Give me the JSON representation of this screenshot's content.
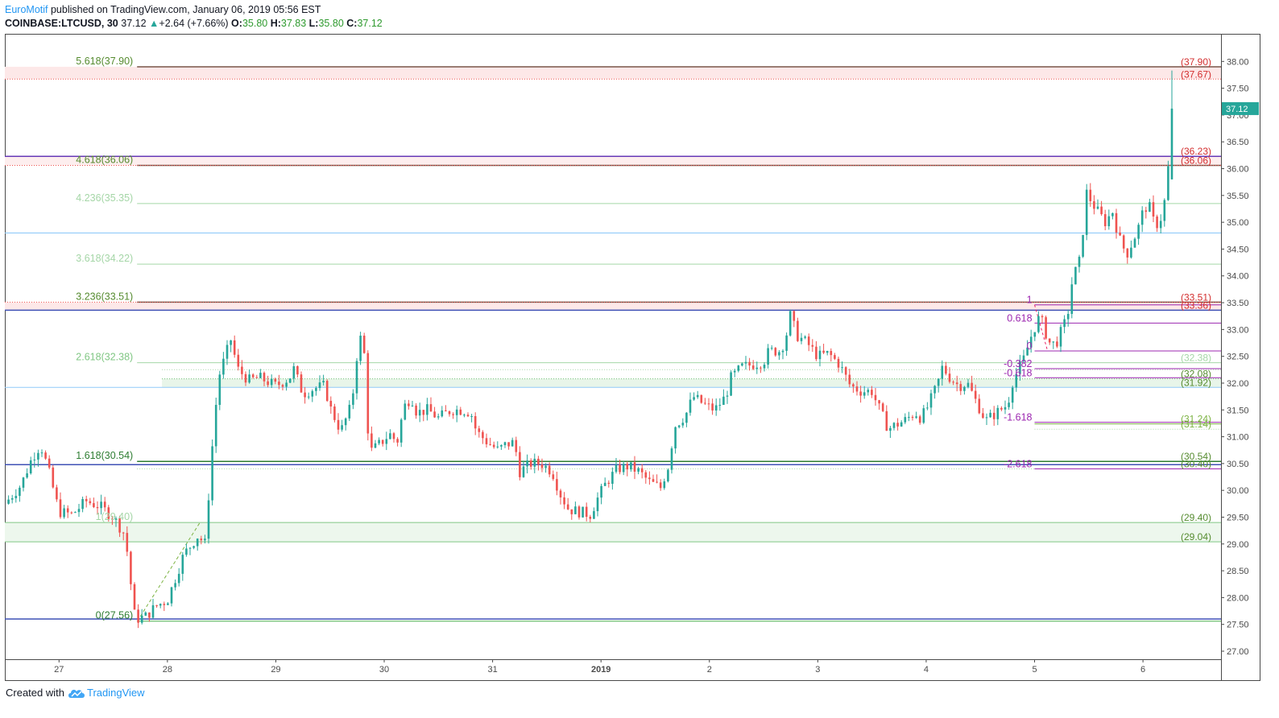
{
  "header": {
    "author": "EuroMotif",
    "published": " published on TradingView.com, January 06, 2019 05:56 EST",
    "symbol": "COINBASE:LTCUSD, 30",
    "last": "37.12",
    "change": "+2.64 (+7.66%)",
    "o_label": "O:",
    "o": "35.80",
    "h_label": "H:",
    "h": "37.83",
    "l_label": "L:",
    "l": "35.80",
    "c_label": "C:",
    "c": "37.12"
  },
  "footer": {
    "created_with": "Created with",
    "brand": "TradingView"
  },
  "colors": {
    "up": "#26a69a",
    "down": "#ef5350",
    "fib": "#4caf50",
    "violet": "#9c27b0",
    "red_label": "#d32f2f"
  },
  "chart_data": {
    "type": "candlestick",
    "title": "",
    "ylim": [
      26.85,
      38.5
    ],
    "y_ticks": [
      "27.00",
      "27.50",
      "28.00",
      "28.50",
      "29.00",
      "29.50",
      "30.00",
      "30.50",
      "31.00",
      "31.50",
      "32.00",
      "32.50",
      "33.00",
      "33.50",
      "34.00",
      "34.50",
      "35.00",
      "35.50",
      "36.00",
      "36.50",
      "37.00",
      "37.50",
      "38.00"
    ],
    "last_price": "37.12",
    "x_ticks": [
      {
        "label": "27",
        "x": 0
      },
      {
        "label": "28",
        "x": 1
      },
      {
        "label": "29",
        "x": 2
      },
      {
        "label": "30",
        "x": 3
      },
      {
        "label": "31",
        "x": 4
      },
      {
        "label": "2019",
        "x": 5,
        "bold": true
      },
      {
        "label": "2",
        "x": 6
      },
      {
        "label": "3",
        "x": 7
      },
      {
        "label": "4",
        "x": 8
      },
      {
        "label": "5",
        "x": 9
      },
      {
        "label": "6",
        "x": 10
      }
    ],
    "xlim": [
      -0.5,
      10.72
    ],
    "close_path": [
      [
        -0.5,
        29.75
      ],
      [
        -0.35,
        30.1
      ],
      [
        -0.25,
        30.6
      ],
      [
        -0.17,
        30.85
      ],
      [
        -0.1,
        30.4
      ],
      [
        0.0,
        29.6
      ],
      [
        0.12,
        29.55
      ],
      [
        0.25,
        29.8
      ],
      [
        0.38,
        29.7
      ],
      [
        0.5,
        29.5
      ],
      [
        0.6,
        29.2
      ],
      [
        0.65,
        28.6
      ],
      [
        0.68,
        27.75
      ],
      [
        0.72,
        27.6
      ],
      [
        0.8,
        27.65
      ],
      [
        0.9,
        27.85
      ],
      [
        1.0,
        27.95
      ],
      [
        1.08,
        28.4
      ],
      [
        1.15,
        28.8
      ],
      [
        1.28,
        29.15
      ],
      [
        1.35,
        29.0
      ],
      [
        1.4,
        30.5
      ],
      [
        1.47,
        32.1
      ],
      [
        1.55,
        32.6
      ],
      [
        1.6,
        32.9
      ],
      [
        1.63,
        32.3
      ],
      [
        1.75,
        32.05
      ],
      [
        1.85,
        32.1
      ],
      [
        2.0,
        31.95
      ],
      [
        2.13,
        32.1
      ],
      [
        2.15,
        32.35
      ],
      [
        2.25,
        31.8
      ],
      [
        2.35,
        31.9
      ],
      [
        2.45,
        31.95
      ],
      [
        2.5,
        31.55
      ],
      [
        2.6,
        31.1
      ],
      [
        2.7,
        31.6
      ],
      [
        2.75,
        32.55
      ],
      [
        2.8,
        33.0
      ],
      [
        2.82,
        32.4
      ],
      [
        2.86,
        30.7
      ],
      [
        2.95,
        30.85
      ],
      [
        3.05,
        31.05
      ],
      [
        3.12,
        30.9
      ],
      [
        3.18,
        31.55
      ],
      [
        3.25,
        31.75
      ],
      [
        3.3,
        31.45
      ],
      [
        3.4,
        31.5
      ],
      [
        3.5,
        31.35
      ],
      [
        3.62,
        31.5
      ],
      [
        3.72,
        31.5
      ],
      [
        3.8,
        31.45
      ],
      [
        3.85,
        31.1
      ],
      [
        3.95,
        30.9
      ],
      [
        4.05,
        30.75
      ],
      [
        4.12,
        30.85
      ],
      [
        4.2,
        30.9
      ],
      [
        4.25,
        30.35
      ],
      [
        4.35,
        30.5
      ],
      [
        4.45,
        30.5
      ],
      [
        4.55,
        30.35
      ],
      [
        4.62,
        29.95
      ],
      [
        4.7,
        29.65
      ],
      [
        4.8,
        29.6
      ],
      [
        4.9,
        29.55
      ],
      [
        4.98,
        29.9
      ],
      [
        5.05,
        30.15
      ],
      [
        5.15,
        30.4
      ],
      [
        5.25,
        30.45
      ],
      [
        5.35,
        30.35
      ],
      [
        5.45,
        30.15
      ],
      [
        5.55,
        30.05
      ],
      [
        5.62,
        30.45
      ],
      [
        5.68,
        31.2
      ],
      [
        5.78,
        31.4
      ],
      [
        5.85,
        31.75
      ],
      [
        5.95,
        31.6
      ],
      [
        6.05,
        31.5
      ],
      [
        6.15,
        31.75
      ],
      [
        6.2,
        32.1
      ],
      [
        6.3,
        32.3
      ],
      [
        6.4,
        32.35
      ],
      [
        6.5,
        32.4
      ],
      [
        6.55,
        32.6
      ],
      [
        6.65,
        32.6
      ],
      [
        6.7,
        32.8
      ],
      [
        6.75,
        33.3
      ],
      [
        6.8,
        32.9
      ],
      [
        6.9,
        32.75
      ],
      [
        7.0,
        32.5
      ],
      [
        7.1,
        32.55
      ],
      [
        7.2,
        32.35
      ],
      [
        7.3,
        31.95
      ],
      [
        7.4,
        31.85
      ],
      [
        7.5,
        31.85
      ],
      [
        7.55,
        31.6
      ],
      [
        7.65,
        31.15
      ],
      [
        7.7,
        31.2
      ],
      [
        7.8,
        31.3
      ],
      [
        7.9,
        31.45
      ],
      [
        7.95,
        31.35
      ],
      [
        8.0,
        31.5
      ],
      [
        8.1,
        31.95
      ],
      [
        8.15,
        32.3
      ],
      [
        8.22,
        32.1
      ],
      [
        8.3,
        31.95
      ],
      [
        8.38,
        32.0
      ],
      [
        8.45,
        31.7
      ],
      [
        8.55,
        31.3
      ],
      [
        8.65,
        31.45
      ],
      [
        8.75,
        31.6
      ],
      [
        8.8,
        32.05
      ],
      [
        8.9,
        32.45
      ],
      [
        8.98,
        32.95
      ],
      [
        9.05,
        33.25
      ],
      [
        9.1,
        32.95
      ],
      [
        9.15,
        32.7
      ],
      [
        9.22,
        32.8
      ],
      [
        9.25,
        33.0
      ],
      [
        9.3,
        33.2
      ],
      [
        9.35,
        33.95
      ],
      [
        9.42,
        34.3
      ],
      [
        9.48,
        35.55
      ],
      [
        9.55,
        35.3
      ],
      [
        9.65,
        35.0
      ],
      [
        9.72,
        35.2
      ],
      [
        9.78,
        34.7
      ],
      [
        9.85,
        34.4
      ],
      [
        9.95,
        34.85
      ],
      [
        10.0,
        35.2
      ],
      [
        10.05,
        35.35
      ],
      [
        10.1,
        35.0
      ],
      [
        10.15,
        34.95
      ],
      [
        10.2,
        35.4
      ],
      [
        10.22,
        35.8
      ],
      [
        10.25,
        36.3
      ],
      [
        10.27,
        37.12
      ]
    ],
    "lines": [
      {
        "y": 37.9,
        "color": "#795548",
        "width": 1.5,
        "from": 0.72,
        "right_label": "(37.90)",
        "label_color": "#d32f2f"
      },
      {
        "y": 37.67,
        "color": "#ef5350",
        "width": 1,
        "dotted": true,
        "from": -0.5,
        "right_label": "(37.67)",
        "label_color": "#d32f2f"
      },
      {
        "y": 36.23,
        "color": "#673ab7",
        "width": 1.5,
        "from": -0.5,
        "right_label": "(36.23)",
        "label_color": "#d32f2f"
      },
      {
        "y": 36.06,
        "color": "#795548",
        "width": 1.5,
        "from": 0.72,
        "right_label": "(36.06)",
        "label_color": "#d32f2f"
      },
      {
        "y": 36.06,
        "color": "#ef5350",
        "width": 1,
        "dotted": true,
        "from": -0.5
      },
      {
        "y": 35.35,
        "color": "#a5d6a7",
        "width": 1,
        "from": 0.72
      },
      {
        "y": 34.8,
        "color": "#90caf9",
        "width": 1.2,
        "from": -0.5
      },
      {
        "y": 34.22,
        "color": "#a5d6a7",
        "width": 1,
        "from": 0.72
      },
      {
        "y": 33.51,
        "color": "#795548",
        "width": 1.5,
        "from": 0.72,
        "right_label": "(33.51)",
        "label_color": "#d32f2f"
      },
      {
        "y": 33.51,
        "color": "#ef5350",
        "width": 1,
        "dotted": true,
        "from": -0.5
      },
      {
        "y": 33.36,
        "color": "#3f51b5",
        "width": 1.5,
        "from": -0.5,
        "right_label": "(33.36)",
        "label_color": "#d32f2f"
      },
      {
        "y": 32.38,
        "color": "#a5d6a7",
        "width": 1,
        "from": 0.72,
        "right_label": "(32.38)",
        "label_color": "#a5d6a7"
      },
      {
        "y": 32.25,
        "color": "#a5d6a7",
        "width": 1,
        "dotted": true,
        "from": 0.95
      },
      {
        "y": 32.08,
        "color": "#66bb6a",
        "width": 1,
        "dotted": true,
        "from": 0.95,
        "right_label": "(32.08)",
        "label_color": "#558b2f"
      },
      {
        "y": 31.92,
        "color": "#90caf9",
        "width": 1,
        "from": -0.5,
        "right_label": "(31.92)",
        "label_color": "#558b2f"
      },
      {
        "y": 31.24,
        "color": "#7cb342",
        "width": 1,
        "from": 9.0,
        "right_label": "(31.24)",
        "label_color": "#7cb342"
      },
      {
        "y": 31.14,
        "color": "#a5d6a7",
        "width": 1,
        "dotted": true,
        "from": 9.0,
        "right_label": "(31.14)",
        "label_color": "#7cb342"
      },
      {
        "y": 30.54,
        "color": "#2e7d32",
        "width": 1.5,
        "from": 0.72,
        "right_label": "(30.54)",
        "label_color": "#558b2f"
      },
      {
        "y": 30.48,
        "color": "#3f51b5",
        "width": 1.5,
        "from": -0.5
      },
      {
        "y": 30.4,
        "color": "#a5d6a7",
        "width": 1,
        "dotted": true,
        "from": 0.72,
        "right_label": "(30.40)",
        "label_color": "#558b2f"
      },
      {
        "y": 29.4,
        "color": "#81c784",
        "width": 1,
        "from": -0.5,
        "right_label": "(29.40)",
        "label_color": "#558b2f"
      },
      {
        "y": 29.04,
        "color": "#81c784",
        "width": 1,
        "from": -0.5,
        "right_label": "(29.04)",
        "label_color": "#558b2f"
      },
      {
        "y": 27.6,
        "color": "#3f51b5",
        "width": 1.5,
        "from": -0.5
      },
      {
        "y": 27.56,
        "color": "#4caf50",
        "width": 1,
        "from": 0.72
      }
    ],
    "zones": [
      {
        "y1": 37.9,
        "y2": 37.67,
        "color": "#fde8e8"
      },
      {
        "y1": 36.23,
        "y2": 36.06,
        "color": "#fdeeee"
      },
      {
        "y1": 33.51,
        "y2": 33.36,
        "color": "#fde8e8"
      },
      {
        "y1": 32.08,
        "y2": 31.92,
        "color": "#e8f5e9",
        "from": 0.95
      },
      {
        "y1": 29.4,
        "y2": 29.04,
        "color": "#edf7ed"
      }
    ],
    "fib_ext_labels": [
      {
        "text": "5.618(37.90)",
        "y": 37.9,
        "color": "#558b2f"
      },
      {
        "text": "4.618(36.06)",
        "y": 36.06,
        "color": "#558b2f"
      },
      {
        "text": "4.236(35.35)",
        "y": 35.35,
        "color": "#a5d6a7"
      },
      {
        "text": "3.618(34.22)",
        "y": 34.22,
        "color": "#a5d6a7"
      },
      {
        "text": "3.236(33.51)",
        "y": 33.51,
        "color": "#558b2f"
      },
      {
        "text": "2.618(32.38)",
        "y": 32.38,
        "color": "#81c784"
      },
      {
        "text": "1.618(30.54)",
        "y": 30.54,
        "color": "#2e7d32"
      },
      {
        "text": "1(29.40)",
        "y": 29.4,
        "color": "#a5d6a7"
      },
      {
        "text": "0(27.56)",
        "y": 27.56,
        "color": "#2e7d32"
      }
    ],
    "fib_small": {
      "color": "#9c27b0",
      "x_from": 9.0,
      "x_to": 10.72,
      "levels": [
        {
          "label": "1",
          "y": 33.46
        },
        {
          "label": "0.618",
          "y": 33.12
        },
        {
          "label": "0",
          "y": 32.6
        },
        {
          "label": "-0.382",
          "y": 32.27
        },
        {
          "label": "-0.618",
          "y": 32.1
        },
        {
          "label": "-1.618",
          "y": 31.27
        },
        {
          "label": "-2.618",
          "y": 30.4
        }
      ]
    }
  }
}
